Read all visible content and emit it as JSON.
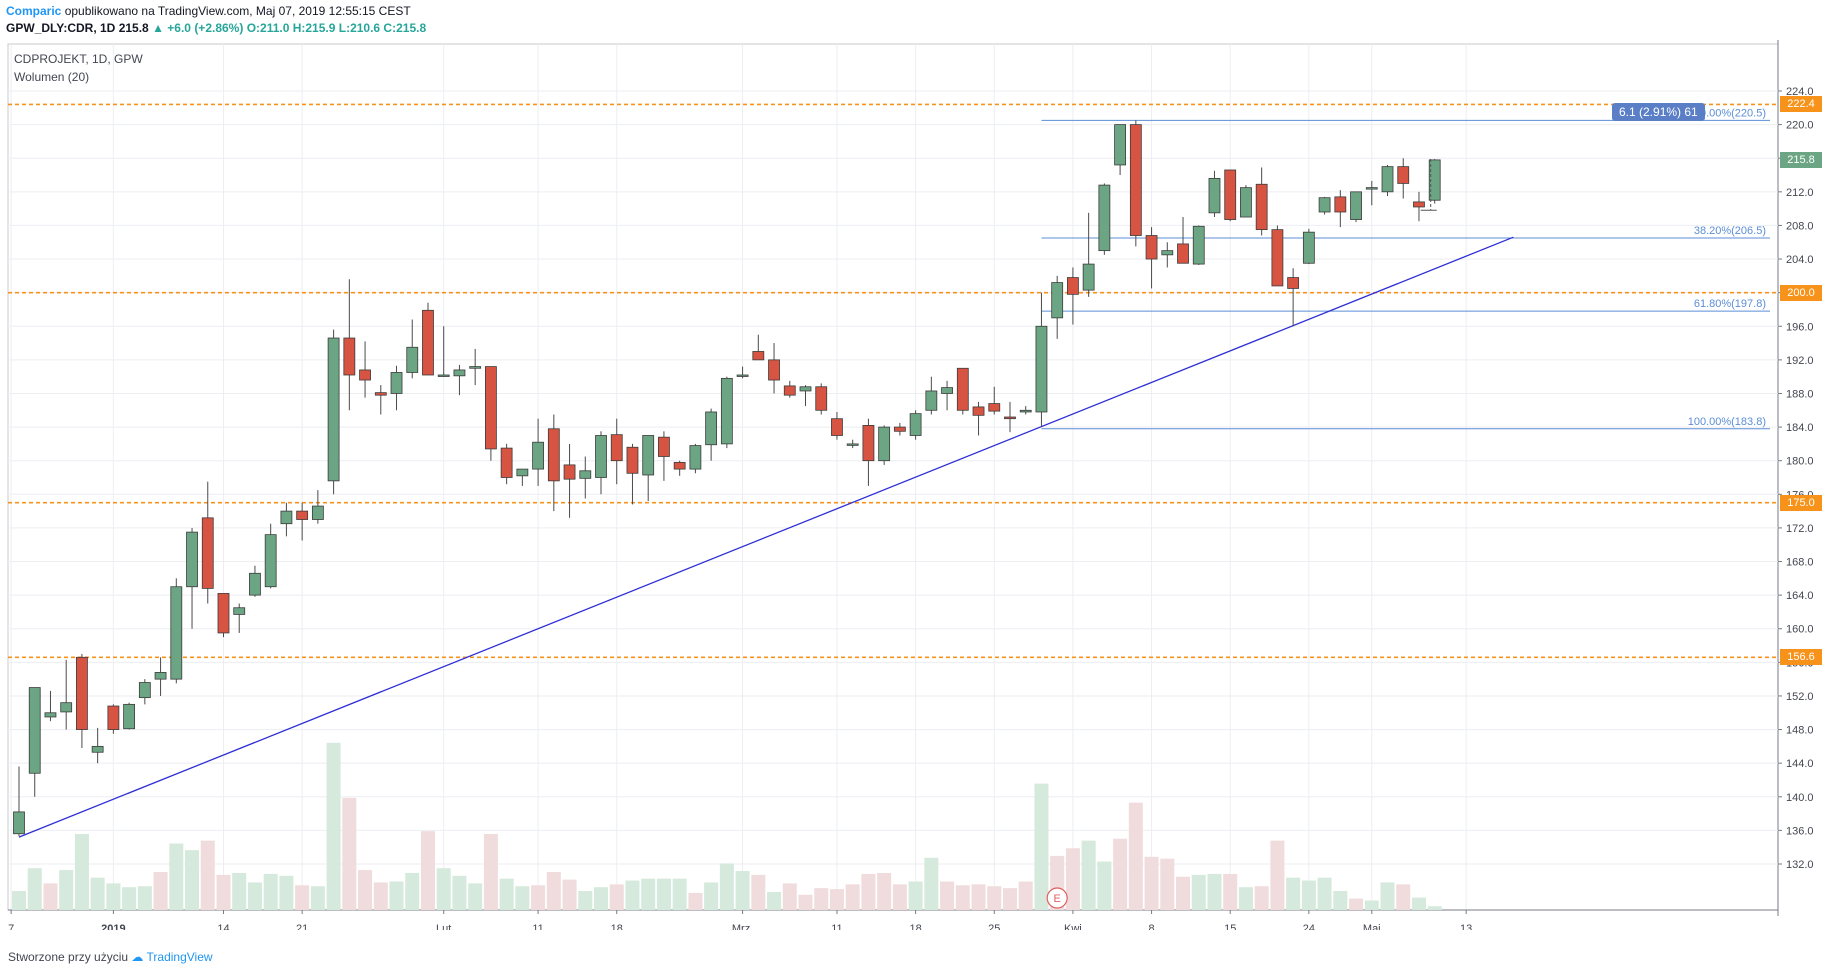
{
  "header": {
    "brand": "Comparic",
    "published": " opublikowano na TradingView.com, Maj 07, 2019 12:55:15 CEST",
    "ticker": "GPW_DLY:CDR, 1D",
    "last": "215.8",
    "change": "▲ +6.0 (+2.86%)",
    "ohlc": "O:211.0 H:215.9 L:210.6 C:215.8"
  },
  "legend": {
    "title": "CDPROJEKT, 1D, GPW",
    "volume": "Wolumen (20)"
  },
  "footer": {
    "text": "Stworzone przy użyciu",
    "brand": "TradingView"
  },
  "colors": {
    "up": "#6ba583",
    "down": "#d75442",
    "up_vol": "#d5e9dc",
    "down_vol": "#f0dcdc",
    "support": "#f7931a",
    "trend": "#2f2fd6",
    "fib": "#5b8ed6"
  },
  "chart_data": {
    "type": "candlestick",
    "title": "CDPROJEKT, 1D, GPW",
    "y_axis": {
      "min": 132,
      "max": 224,
      "ticks": [
        "224.0",
        "220.0",
        "216.0",
        "212.0",
        "208.0",
        "204.0",
        "200.0",
        "196.0",
        "192.0",
        "188.0",
        "184.0",
        "180.0",
        "176.0",
        "172.0",
        "168.0",
        "164.0",
        "160.0",
        "156.0",
        "152.0",
        "148.0",
        "144.0",
        "140.0",
        "136.0",
        "132.0"
      ]
    },
    "x_axis": {
      "tick_labels": [
        "7",
        "2019",
        "14",
        "21",
        "Lut",
        "11",
        "18",
        "Mrz.",
        "11",
        "18",
        "25",
        "Kwi",
        "8",
        "15",
        "24",
        "Maj",
        "13"
      ],
      "tick_index": [
        -0.5,
        6,
        13,
        18,
        27,
        33,
        38,
        46,
        52,
        57,
        62,
        67,
        72,
        77,
        82,
        86,
        92
      ]
    },
    "candles": [
      [
        135.6,
        143.6,
        135.3,
        138.2
      ],
      [
        142.8,
        153.0,
        140.0,
        153.0
      ],
      [
        149.5,
        152.6,
        149.0,
        150.0
      ],
      [
        150.1,
        156.3,
        148.0,
        151.2
      ],
      [
        156.6,
        157.0,
        145.8,
        148.0
      ],
      [
        145.3,
        148.2,
        144.0,
        146.0
      ],
      [
        150.8,
        151.0,
        147.5,
        148.0
      ],
      [
        148.1,
        151.2,
        148.0,
        151.0
      ],
      [
        151.8,
        154.0,
        151.0,
        153.6
      ],
      [
        154.0,
        156.6,
        152.0,
        154.8
      ],
      [
        154.0,
        166.0,
        153.5,
        165.0
      ],
      [
        165.0,
        172.0,
        160.0,
        171.5
      ],
      [
        173.2,
        177.5,
        163.0,
        164.8
      ],
      [
        164.2,
        164.2,
        159.0,
        159.5
      ],
      [
        161.7,
        163.0,
        159.5,
        162.5
      ],
      [
        164.0,
        167.5,
        163.8,
        166.6
      ],
      [
        165.0,
        172.5,
        164.8,
        171.2
      ],
      [
        172.5,
        175.0,
        171.0,
        174.0
      ],
      [
        174.0,
        175.0,
        170.5,
        173.0
      ],
      [
        173.0,
        176.5,
        172.5,
        174.6
      ],
      [
        177.6,
        195.6,
        176.0,
        194.6
      ],
      [
        194.6,
        201.6,
        186.0,
        190.2
      ],
      [
        190.8,
        194.2,
        187.5,
        189.6
      ],
      [
        188.1,
        189.0,
        185.5,
        187.8
      ],
      [
        188.0,
        191.3,
        186.0,
        190.5
      ],
      [
        190.5,
        196.8,
        189.8,
        193.5
      ],
      [
        197.9,
        198.8,
        190.2,
        190.2
      ],
      [
        190.2,
        196.0,
        190.0,
        190.2
      ],
      [
        190.1,
        191.4,
        187.8,
        190.8
      ],
      [
        191.0,
        193.3,
        189.0,
        191.2
      ],
      [
        191.2,
        191.2,
        180.0,
        181.4
      ],
      [
        181.5,
        182.0,
        177.2,
        178.0
      ],
      [
        178.2,
        179.0,
        177.0,
        179.0
      ],
      [
        179.0,
        185.0,
        177.0,
        182.2
      ],
      [
        183.8,
        185.5,
        174.0,
        177.6
      ],
      [
        179.5,
        182.0,
        173.2,
        177.8
      ],
      [
        177.9,
        180.5,
        175.5,
        178.8
      ],
      [
        178.0,
        183.5,
        176.0,
        183.0
      ],
      [
        183.1,
        185.0,
        177.2,
        180.0
      ],
      [
        181.6,
        182.0,
        174.8,
        178.5
      ],
      [
        178.3,
        183.0,
        175.2,
        183.0
      ],
      [
        182.8,
        183.5,
        177.6,
        180.5
      ],
      [
        179.8,
        180.0,
        178.2,
        179.0
      ],
      [
        179.0,
        182.0,
        178.5,
        181.8
      ],
      [
        181.9,
        186.2,
        180.0,
        185.8
      ],
      [
        182.0,
        190.0,
        181.5,
        189.8
      ],
      [
        190.2,
        191.2,
        189.8,
        190.2
      ],
      [
        193.0,
        195.0,
        192.5,
        192.0
      ],
      [
        192.0,
        194.0,
        188.0,
        189.6
      ],
      [
        188.9,
        189.5,
        187.5,
        187.8
      ],
      [
        188.3,
        189.0,
        186.5,
        188.8
      ],
      [
        188.8,
        189.2,
        185.5,
        186.0
      ],
      [
        185.0,
        185.8,
        182.5,
        183.0
      ],
      [
        182.0,
        182.5,
        181.5,
        182.0
      ],
      [
        184.2,
        185.0,
        177.0,
        180.0
      ],
      [
        180.0,
        184.2,
        179.5,
        184.0
      ],
      [
        184.0,
        184.5,
        183.0,
        183.5
      ],
      [
        183.0,
        186.0,
        182.5,
        185.6
      ],
      [
        186.0,
        190.0,
        185.5,
        188.3
      ],
      [
        188.0,
        189.5,
        186.0,
        188.7
      ],
      [
        191.0,
        191.0,
        185.5,
        186.0
      ],
      [
        186.4,
        187.0,
        183.0,
        185.4
      ],
      [
        186.8,
        188.8,
        185.5,
        185.9
      ],
      [
        185.2,
        187.0,
        183.4,
        185.0
      ],
      [
        185.8,
        186.5,
        185.5,
        186.0
      ],
      [
        185.8,
        200.0,
        184.0,
        196.0
      ],
      [
        197.0,
        202.0,
        194.5,
        201.2
      ],
      [
        201.8,
        203.0,
        196.2,
        199.8
      ],
      [
        200.3,
        209.5,
        199.5,
        203.4
      ],
      [
        205.0,
        213.0,
        204.5,
        212.8
      ],
      [
        215.2,
        220.0,
        214.0,
        220.0
      ],
      [
        220.0,
        220.5,
        205.5,
        206.8
      ],
      [
        206.8,
        207.8,
        200.5,
        204.0
      ],
      [
        204.5,
        206.0,
        203.0,
        205.0
      ],
      [
        205.8,
        209.0,
        203.5,
        203.5
      ],
      [
        203.4,
        208.0,
        203.3,
        207.9
      ],
      [
        209.5,
        214.5,
        209.0,
        213.6
      ],
      [
        214.6,
        214.6,
        208.5,
        208.7
      ],
      [
        209.0,
        212.8,
        209.0,
        212.5
      ],
      [
        212.9,
        214.9,
        206.8,
        207.5
      ],
      [
        207.5,
        208.0,
        200.8,
        200.8
      ],
      [
        201.8,
        202.9,
        196.0,
        200.5
      ],
      [
        203.5,
        207.6,
        203.4,
        207.2
      ],
      [
        209.6,
        211.4,
        209.3,
        211.3
      ],
      [
        211.4,
        212.2,
        207.8,
        209.6
      ],
      [
        208.7,
        212.0,
        208.4,
        212.0
      ],
      [
        212.5,
        213.3,
        210.4,
        212.5
      ],
      [
        212.0,
        215.2,
        211.5,
        215.0
      ],
      [
        215.0,
        216.0,
        211.2,
        213.0
      ],
      [
        210.8,
        212.0,
        208.5,
        210.2
      ],
      [
        211.0,
        215.9,
        210.6,
        215.8
      ]
    ],
    "volume": [
      [
        1,
        20
      ],
      [
        1,
        44
      ],
      [
        0,
        28
      ],
      [
        1,
        42
      ],
      [
        1,
        80
      ],
      [
        1,
        34
      ],
      [
        1,
        28
      ],
      [
        1,
        24
      ],
      [
        1,
        25
      ],
      [
        0,
        40
      ],
      [
        1,
        70
      ],
      [
        1,
        63
      ],
      [
        0,
        73
      ],
      [
        0,
        37
      ],
      [
        1,
        39
      ],
      [
        1,
        29
      ],
      [
        1,
        38
      ],
      [
        1,
        36
      ],
      [
        0,
        26
      ],
      [
        1,
        25
      ],
      [
        1,
        176
      ],
      [
        0,
        118
      ],
      [
        0,
        42
      ],
      [
        0,
        29
      ],
      [
        1,
        30
      ],
      [
        1,
        39
      ],
      [
        0,
        83
      ],
      [
        1,
        44
      ],
      [
        1,
        36
      ],
      [
        1,
        28
      ],
      [
        0,
        80
      ],
      [
        1,
        33
      ],
      [
        1,
        25
      ],
      [
        0,
        26
      ],
      [
        0,
        40
      ],
      [
        0,
        32
      ],
      [
        1,
        20
      ],
      [
        1,
        24
      ],
      [
        0,
        27
      ],
      [
        1,
        31
      ],
      [
        1,
        33
      ],
      [
        1,
        33
      ],
      [
        1,
        33
      ],
      [
        0,
        18
      ],
      [
        1,
        29
      ],
      [
        1,
        49
      ],
      [
        1,
        41
      ],
      [
        0,
        37
      ],
      [
        1,
        19
      ],
      [
        0,
        28
      ],
      [
        0,
        16
      ],
      [
        0,
        23
      ],
      [
        0,
        22
      ],
      [
        0,
        27
      ],
      [
        0,
        38
      ],
      [
        0,
        39
      ],
      [
        0,
        27
      ],
      [
        1,
        30
      ],
      [
        1,
        55
      ],
      [
        0,
        30
      ],
      [
        0,
        26
      ],
      [
        0,
        27
      ],
      [
        0,
        25
      ],
      [
        0,
        23
      ],
      [
        0,
        30
      ],
      [
        1,
        133
      ],
      [
        0,
        57
      ],
      [
        0,
        65
      ],
      [
        1,
        73
      ],
      [
        1,
        51
      ],
      [
        0,
        75
      ],
      [
        0,
        113
      ],
      [
        0,
        56
      ],
      [
        0,
        54
      ],
      [
        0,
        35
      ],
      [
        1,
        37
      ],
      [
        1,
        38
      ],
      [
        0,
        38
      ],
      [
        1,
        24
      ],
      [
        0,
        25
      ],
      [
        0,
        73
      ],
      [
        1,
        34
      ],
      [
        1,
        31
      ],
      [
        1,
        34
      ],
      [
        1,
        20
      ],
      [
        0,
        12
      ],
      [
        1,
        10
      ],
      [
        1,
        29
      ],
      [
        0,
        27
      ],
      [
        1,
        13
      ],
      [
        1,
        4
      ]
    ],
    "annotations": {
      "support_levels": [
        222.4,
        200.0,
        175.0,
        156.6
      ],
      "support_labels": [
        "222.4",
        "200.0",
        "175.0",
        "156.6"
      ],
      "last_price": "215.8",
      "fibonacci": [
        {
          "label": "0.00%(220.5)",
          "value": 220.5
        },
        {
          "label": "38.20%(206.5)",
          "value": 206.5
        },
        {
          "label": "61.80%(197.8)",
          "value": 197.8
        },
        {
          "label": "100.00%(183.8)",
          "value": 183.8
        }
      ],
      "trendline": [
        [
          0,
          135.2
        ],
        [
          95,
          206.6
        ]
      ],
      "measure": "6.1 (2.91%) 61",
      "event_marker": "E"
    }
  }
}
